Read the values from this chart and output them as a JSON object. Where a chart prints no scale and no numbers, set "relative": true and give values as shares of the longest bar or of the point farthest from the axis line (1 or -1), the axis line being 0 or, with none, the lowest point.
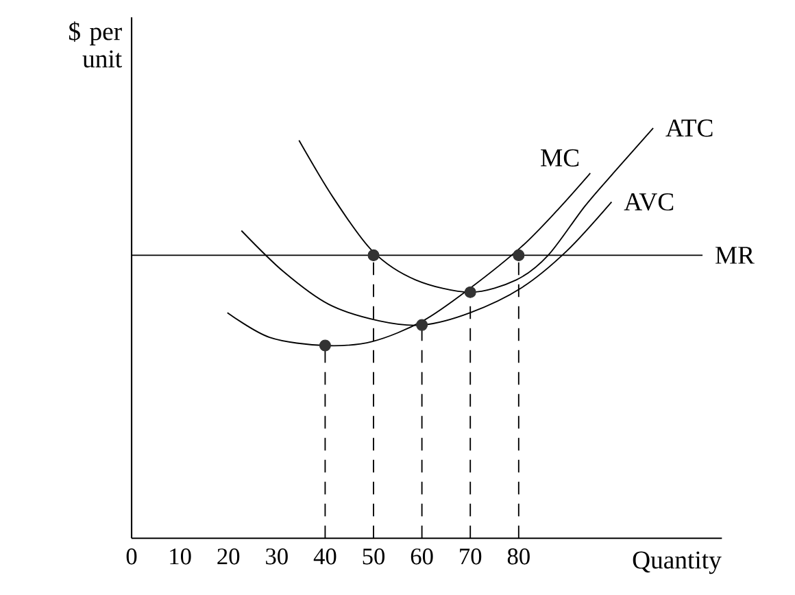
{
  "chart_data": {
    "type": "line",
    "xlabel": "Quantity",
    "ylabel": "$ per unit",
    "relative": true,
    "xlim": [
      0,
      122
    ],
    "xticks": [
      0,
      10,
      20,
      30,
      40,
      50,
      60,
      70,
      80
    ],
    "series": [
      {
        "name": "ATC",
        "color": "#000000",
        "x": [
          34.6,
          41.7,
          49.8,
          58.7,
          70,
          79.5,
          86.1,
          93.7,
          100.3,
          107.8
        ],
        "values": [
          0.97,
          0.83,
          0.7,
          0.63,
          0.6,
          0.63,
          0.69,
          0.81,
          0.9,
          1.0
        ]
      },
      {
        "name": "MC",
        "color": "#000000",
        "x": [
          19.8,
          28.5,
          39.9,
          49.8,
          60.2,
          70,
          80.5,
          88,
          94.8
        ],
        "values": [
          0.55,
          0.49,
          0.47,
          0.48,
          0.53,
          0.61,
          0.71,
          0.8,
          0.89
        ]
      },
      {
        "name": "AVC",
        "color": "#000000",
        "x": [
          22.7,
          31.4,
          40.8,
          51.2,
          60.2,
          70,
          80.5,
          89.9,
          99.2
        ],
        "values": [
          0.75,
          0.65,
          0.57,
          0.53,
          0.52,
          0.55,
          0.61,
          0.7,
          0.82
        ]
      },
      {
        "name": "MR",
        "color": "#000000",
        "x": [
          0,
          118
        ],
        "values": [
          0.69,
          0.69
        ]
      },
      {
        "type": "line",
        "line_style": "dashed",
        "color": "#000000",
        "x": [
          40,
          40
        ],
        "values": [
          0,
          0.47
        ]
      },
      {
        "type": "line",
        "line_style": "dashed",
        "color": "#000000",
        "x": [
          50,
          50
        ],
        "values": [
          0,
          0.69
        ]
      },
      {
        "type": "line",
        "line_style": "dashed",
        "color": "#000000",
        "x": [
          60,
          60
        ],
        "values": [
          0,
          0.52
        ]
      },
      {
        "type": "line",
        "line_style": "dashed",
        "color": "#000000",
        "x": [
          70,
          70
        ],
        "values": [
          0,
          0.6
        ]
      },
      {
        "type": "line",
        "line_style": "dashed",
        "color": "#000000",
        "x": [
          80,
          80
        ],
        "values": [
          0,
          0.69
        ]
      },
      {
        "type": "scatter",
        "marker": "circle",
        "color": "#333333",
        "x": [
          40,
          50,
          60,
          70,
          80
        ],
        "values": [
          0.47,
          0.69,
          0.52,
          0.6,
          0.69
        ]
      }
    ]
  }
}
